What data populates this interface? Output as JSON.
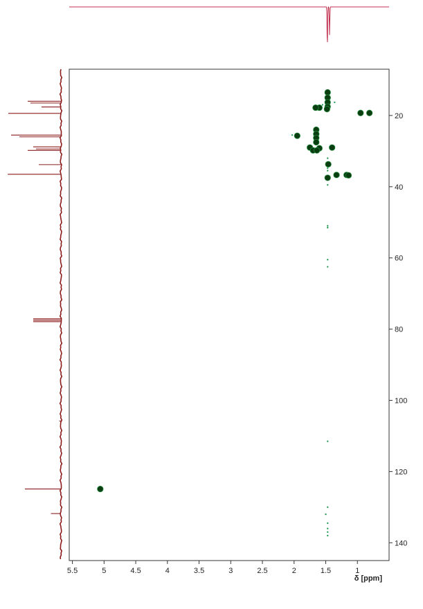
{
  "chart_data": {
    "type": "scatter",
    "title": "",
    "xlabel": "δ [ppm]",
    "ylabel": "",
    "xlim": [
      5.55,
      0.5
    ],
    "ylim": [
      7,
      145
    ],
    "x_reversed": true,
    "x_ticks": [
      5.5,
      5,
      4.5,
      4,
      3.5,
      3,
      2.5,
      2,
      1.5,
      1
    ],
    "x_tick_labels": [
      "5.5",
      "5",
      "4.5",
      "4",
      "3.5",
      "3",
      "2.5",
      "2",
      "1.5",
      "1"
    ],
    "y_ticks": [
      20,
      40,
      60,
      80,
      100,
      120,
      140
    ],
    "y_tick_labels": [
      "20",
      "40",
      "60",
      "80",
      "100",
      "120",
      "140"
    ],
    "grid": false,
    "colors": {
      "cross_peak": "#0b3d12",
      "cross_peak_edge": "#1f8a3a",
      "noise": "#2e9e5a",
      "projection_top": "#c0304f",
      "projection_left": "#8b1a1a",
      "frame": "#333333"
    },
    "points": [
      {
        "x": 1.47,
        "y": 13.5
      },
      {
        "x": 1.47,
        "y": 15.0
      },
      {
        "x": 1.47,
        "y": 16.3
      },
      {
        "x": 1.47,
        "y": 17.5
      },
      {
        "x": 1.48,
        "y": 18.2
      },
      {
        "x": 1.6,
        "y": 17.8
      },
      {
        "x": 1.66,
        "y": 17.8
      },
      {
        "x": 0.95,
        "y": 19.3
      },
      {
        "x": 0.81,
        "y": 19.3
      },
      {
        "x": 1.95,
        "y": 25.7
      },
      {
        "x": 1.65,
        "y": 24.0
      },
      {
        "x": 1.65,
        "y": 25.2
      },
      {
        "x": 1.65,
        "y": 26.3
      },
      {
        "x": 1.65,
        "y": 27.5
      },
      {
        "x": 1.75,
        "y": 29.0
      },
      {
        "x": 1.7,
        "y": 29.8
      },
      {
        "x": 1.6,
        "y": 29.2
      },
      {
        "x": 1.64,
        "y": 29.8
      },
      {
        "x": 1.4,
        "y": 29.0
      },
      {
        "x": 1.46,
        "y": 33.7
      },
      {
        "x": 1.47,
        "y": 37.5
      },
      {
        "x": 1.33,
        "y": 36.7
      },
      {
        "x": 1.17,
        "y": 36.7
      },
      {
        "x": 1.14,
        "y": 36.8
      },
      {
        "x": 5.06,
        "y": 124.9
      }
    ],
    "noise_points": [
      {
        "x": 1.47,
        "y": 32.0
      },
      {
        "x": 1.47,
        "y": 34.8
      },
      {
        "x": 1.47,
        "y": 35.5
      },
      {
        "x": 1.47,
        "y": 39.5
      },
      {
        "x": 1.47,
        "y": 51.0
      },
      {
        "x": 1.47,
        "y": 51.5
      },
      {
        "x": 1.47,
        "y": 60.5
      },
      {
        "x": 1.47,
        "y": 62.5
      },
      {
        "x": 1.47,
        "y": 111.5
      },
      {
        "x": 1.47,
        "y": 130.0
      },
      {
        "x": 1.47,
        "y": 134.5
      },
      {
        "x": 1.47,
        "y": 136.0
      },
      {
        "x": 1.47,
        "y": 137.0
      },
      {
        "x": 1.47,
        "y": 138.0
      },
      {
        "x": 1.5,
        "y": 132.0
      },
      {
        "x": 1.36,
        "y": 16.3
      },
      {
        "x": 1.55,
        "y": 17.0
      },
      {
        "x": 2.03,
        "y": 25.5
      }
    ],
    "top_projection": {
      "peaks": [
        {
          "x": 1.475,
          "height": 1.0
        },
        {
          "x": 1.44,
          "height": 0.7
        }
      ]
    },
    "left_projection": {
      "peaks": [
        {
          "y": 16.0,
          "height": 0.6
        },
        {
          "y": 16.5,
          "height": 0.55
        },
        {
          "y": 17.6,
          "height": 0.35
        },
        {
          "y": 19.4,
          "height": 0.95
        },
        {
          "y": 25.5,
          "height": 0.9
        },
        {
          "y": 26.0,
          "height": 0.75
        },
        {
          "y": 28.8,
          "height": 0.5
        },
        {
          "y": 29.4,
          "height": 0.45
        },
        {
          "y": 29.8,
          "height": 0.6
        },
        {
          "y": 33.8,
          "height": 0.4
        },
        {
          "y": 36.5,
          "height": 0.96
        },
        {
          "y": 77.1,
          "height": 0.5
        },
        {
          "y": 77.5,
          "height": 0.5
        },
        {
          "y": 77.9,
          "height": 0.5
        },
        {
          "y": 124.9,
          "height": 0.65
        },
        {
          "y": 131.8,
          "height": 0.18
        },
        {
          "y": 105.8,
          "height": 0.03
        }
      ]
    }
  }
}
